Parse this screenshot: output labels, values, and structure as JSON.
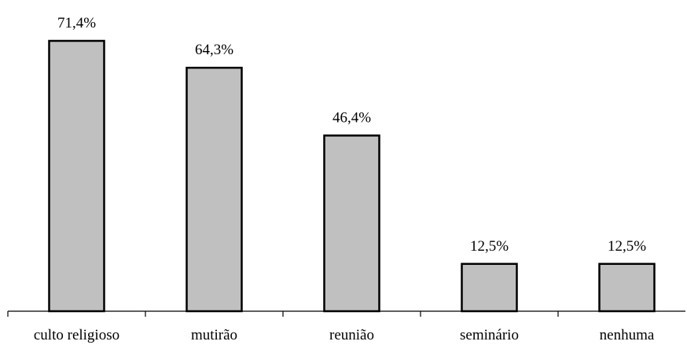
{
  "chart_data": {
    "type": "bar",
    "categories": [
      "culto religioso",
      "mutirão",
      "reunião",
      "seminário",
      "nenhuma"
    ],
    "values": [
      71.4,
      64.3,
      46.4,
      12.5,
      12.5
    ],
    "value_labels": [
      "71,4%",
      "64,3%",
      "46,4%",
      "12,5%",
      "12,5%"
    ],
    "title": "",
    "xlabel": "",
    "ylabel": "",
    "ylim": [
      0,
      71.4
    ],
    "grid": false,
    "legend": "none",
    "colors": {
      "bar_fill": "#c0c0c0",
      "bar_stroke": "#000000",
      "text": "#000000",
      "background": "#ffffff"
    }
  }
}
